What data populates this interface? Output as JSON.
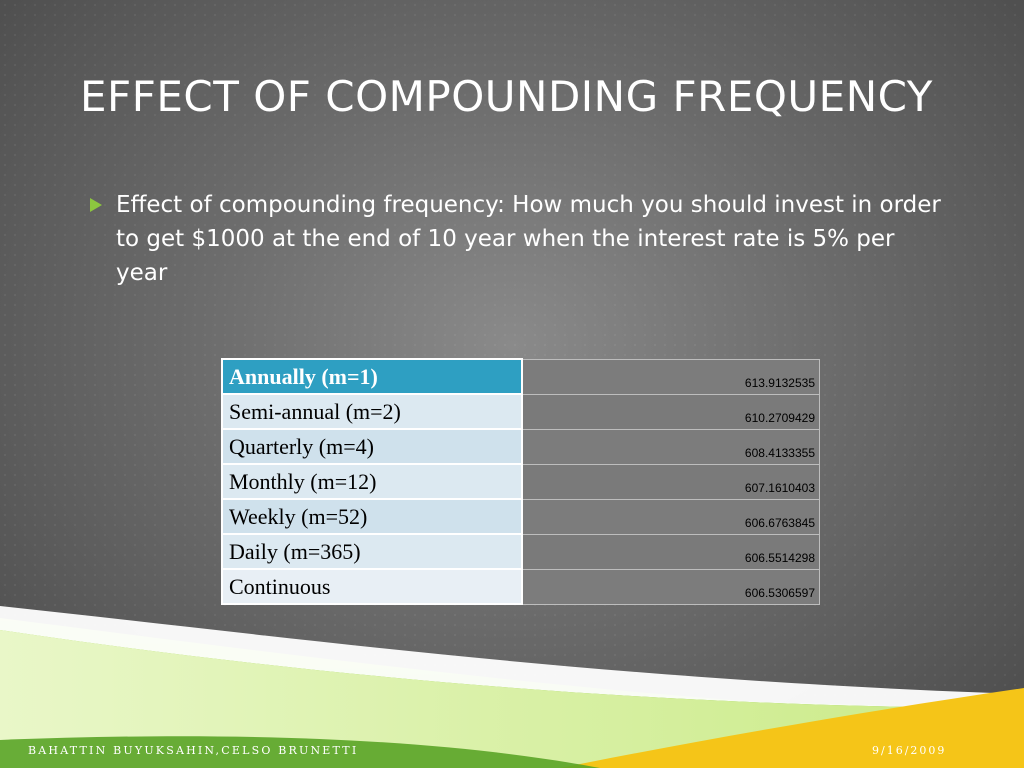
{
  "slide": {
    "title": "EFFECT OF COMPOUNDING FREQUENCY",
    "bullet": "Effect of compounding frequency: How much you should invest in order to get $1000 at the end of 10 year when the interest rate is 5% per year"
  },
  "table": {
    "rows": [
      {
        "label": "Annually (m=1)",
        "value": "613.9132535"
      },
      {
        "label": "Semi-annual (m=2)",
        "value": "610.2709429"
      },
      {
        "label": "Quarterly (m=4)",
        "value": "608.4133355"
      },
      {
        "label": "Monthly (m=12)",
        "value": "607.1610403"
      },
      {
        "label": "Weekly (m=52)",
        "value": "606.6763845"
      },
      {
        "label": "Daily (m=365)",
        "value": "606.5514298"
      },
      {
        "label": "Continuous",
        "value": "606.5306597"
      }
    ]
  },
  "footer": {
    "author": "BAHATTIN BUYUKSAHIN,CELSO BRUNETTI",
    "date": "9/16/2009"
  },
  "colors": {
    "accent_green": "#8cc63f",
    "accent_yellow": "#f5c518",
    "header_blue": "#2e9fc2"
  }
}
